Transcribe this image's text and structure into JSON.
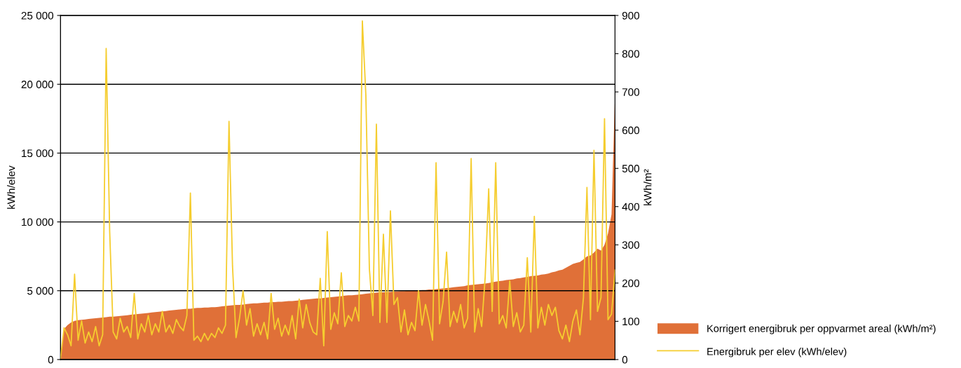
{
  "chart_data": {
    "type": "line",
    "ylabel": "kWh/elev",
    "y2label": "kWh/m²",
    "categories": [
      null,
      null,
      null,
      null,
      null,
      null,
      null,
      null,
      null,
      null,
      null,
      null,
      null,
      null,
      null,
      null,
      null,
      null,
      null,
      null,
      null,
      null,
      null,
      null,
      null,
      null,
      null,
      null,
      null,
      null,
      null,
      null,
      null,
      null,
      null,
      null,
      null,
      null,
      null,
      null,
      null,
      null,
      null,
      null,
      null,
      null,
      null,
      null,
      null,
      null,
      null,
      null,
      null,
      null,
      null,
      null,
      null,
      null,
      null,
      null,
      null,
      null,
      null,
      null,
      null,
      null,
      null,
      null,
      null,
      null,
      null,
      null,
      null,
      null,
      null,
      null,
      null,
      null,
      null,
      null,
      null,
      null,
      null,
      null,
      null,
      null,
      null,
      null,
      null,
      null,
      null,
      null,
      null,
      null,
      null,
      null,
      null,
      null,
      null,
      null,
      null,
      null,
      null,
      null,
      null,
      null,
      null,
      null,
      null,
      null,
      null,
      null,
      null,
      null,
      null,
      null,
      null,
      null,
      null,
      null,
      null,
      null,
      null,
      null,
      null,
      null,
      null,
      null,
      null,
      null,
      null,
      null,
      null,
      null,
      null,
      null,
      null,
      null,
      null,
      null,
      null,
      null,
      null,
      null,
      null,
      null,
      null,
      null,
      null,
      null,
      null,
      null,
      null,
      null,
      null,
      null,
      null,
      null,
      null
    ],
    "series": [
      {
        "name": "Korrigert energibruk per oppvarmet areal (kWh/m²)",
        "type": "area",
        "axis": "y2",
        "color": "#e07038",
        "values": [
          0,
          80,
          90,
          97,
          101,
          103,
          104,
          105,
          106,
          107,
          108,
          109,
          110,
          111,
          112,
          112,
          113,
          114,
          115,
          116,
          117,
          118,
          119,
          120,
          121,
          122,
          123,
          124,
          125,
          126,
          127,
          128,
          129,
          130,
          131,
          132,
          133,
          133,
          134,
          135,
          135,
          136,
          136,
          137,
          137,
          138,
          139,
          140,
          141,
          142,
          143,
          143,
          144,
          145,
          146,
          147,
          147,
          148,
          149,
          149,
          150,
          150,
          151,
          151,
          152,
          153,
          153,
          154,
          155,
          156,
          157,
          158,
          159,
          160,
          160,
          161,
          162,
          163,
          164,
          165,
          166,
          167,
          168,
          168,
          169,
          170,
          171,
          172,
          173,
          174,
          175,
          176,
          176,
          177,
          177,
          178,
          178,
          179,
          179,
          180,
          180,
          181,
          181,
          182,
          182,
          183,
          183,
          184,
          185,
          186,
          187,
          188,
          189,
          190,
          191,
          192,
          194,
          195,
          196,
          197,
          198,
          199,
          200,
          202,
          204,
          205,
          206,
          208,
          209,
          210,
          212,
          213,
          215,
          216,
          218,
          219,
          220,
          222,
          223,
          225,
          228,
          230,
          233,
          235,
          240,
          245,
          250,
          253,
          255,
          262,
          270,
          272,
          280,
          290,
          285,
          300,
          330,
          380,
          700
        ]
      },
      {
        "name": "Energibruk per elev (kWh/elev)",
        "color": "#f5cd2f",
        "values": [
          100,
          2300,
          1800,
          1000,
          6200,
          1400,
          2800,
          1200,
          2000,
          1300,
          2400,
          1000,
          1800,
          22600,
          9300,
          2000,
          1500,
          3000,
          2000,
          2400,
          1600,
          4800,
          1500,
          2600,
          2000,
          3200,
          1800,
          2600,
          2000,
          3500,
          2000,
          2500,
          1900,
          2900,
          2400,
          2100,
          3200,
          12100,
          1400,
          1700,
          1300,
          1900,
          1400,
          1900,
          1600,
          2300,
          1900,
          2500,
          17300,
          6800,
          1600,
          3000,
          5000,
          2500,
          3700,
          1700,
          2600,
          1800,
          2700,
          1500,
          4800,
          2200,
          3000,
          1700,
          2500,
          1800,
          3200,
          1500,
          4400,
          2300,
          4000,
          2700,
          2000,
          1800,
          5900,
          1000,
          9300,
          2200,
          3400,
          2600,
          6300,
          2400,
          3200,
          2800,
          3800,
          2800,
          24600,
          19200,
          6600,
          3200,
          17100,
          2700,
          9100,
          2700,
          10800,
          4000,
          4500,
          2000,
          3600,
          1800,
          2700,
          2100,
          5000,
          2500,
          4000,
          2800,
          1400,
          14300,
          2600,
          4200,
          7800,
          2400,
          3500,
          2700,
          4000,
          2300,
          3000,
          14600,
          2000,
          3700,
          2400,
          6000,
          12400,
          3500,
          14300,
          2600,
          3200,
          2300,
          5700,
          2400,
          3400,
          2000,
          2500,
          7400,
          2000,
          10400,
          2300,
          3800,
          2500,
          4000,
          3200,
          3800,
          2100,
          1500,
          2500,
          1300,
          2800,
          3600,
          1800,
          4500,
          12500,
          2900,
          15200,
          3500,
          4500,
          17500,
          2900,
          3300,
          6500
        ]
      }
    ],
    "ylim": [
      0,
      25000
    ],
    "yticks": [
      0,
      {
        "value": 5000,
        "label": "5 000"
      },
      {
        "value": 10000,
        "label": "10 000"
      },
      {
        "value": 15000,
        "label": "15 000"
      },
      {
        "value": 20000,
        "label": "20 000"
      },
      {
        "value": 25000,
        "label": "25 000"
      }
    ],
    "y2lim": [
      0,
      900
    ],
    "y2ticks": [
      0,
      100,
      200,
      300,
      400,
      500,
      600,
      700,
      800,
      900
    ],
    "grid": "y",
    "legend": "bottom right"
  }
}
